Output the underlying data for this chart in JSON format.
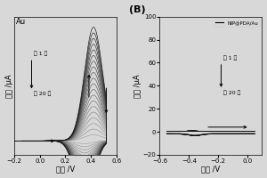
{
  "panel_A": {
    "title": "Au",
    "xlabel": "电位 /V",
    "ylabel": "电流 /μA",
    "xlim": [
      -0.2,
      0.6
    ],
    "ylim": [
      -0.12,
      1.1
    ],
    "annotation1": "第 1 圈",
    "annotation2": "第 20 圈",
    "n_cycles": 20,
    "xticks": [
      -0.2,
      0.0,
      0.2,
      0.4,
      0.6
    ]
  },
  "panel_B": {
    "title": "NIP@PDA/Au",
    "xlabel": "电位 /V",
    "ylabel": "电流 /μA",
    "xlim": [
      -0.6,
      0.1
    ],
    "ylim": [
      -20,
      100
    ],
    "annotation1": "第 1 圈",
    "annotation2": "第 20 圈",
    "n_cycles": 20,
    "yticks": [
      -20,
      0,
      20,
      40,
      60,
      80,
      100
    ],
    "xticks": [
      -0.6,
      -0.4,
      -0.2,
      0.0
    ]
  },
  "bg_color": "#d8d8d8",
  "label_fontsize": 6,
  "tick_fontsize": 5,
  "title_fontsize": 6,
  "annot_fontsize": 4.5
}
